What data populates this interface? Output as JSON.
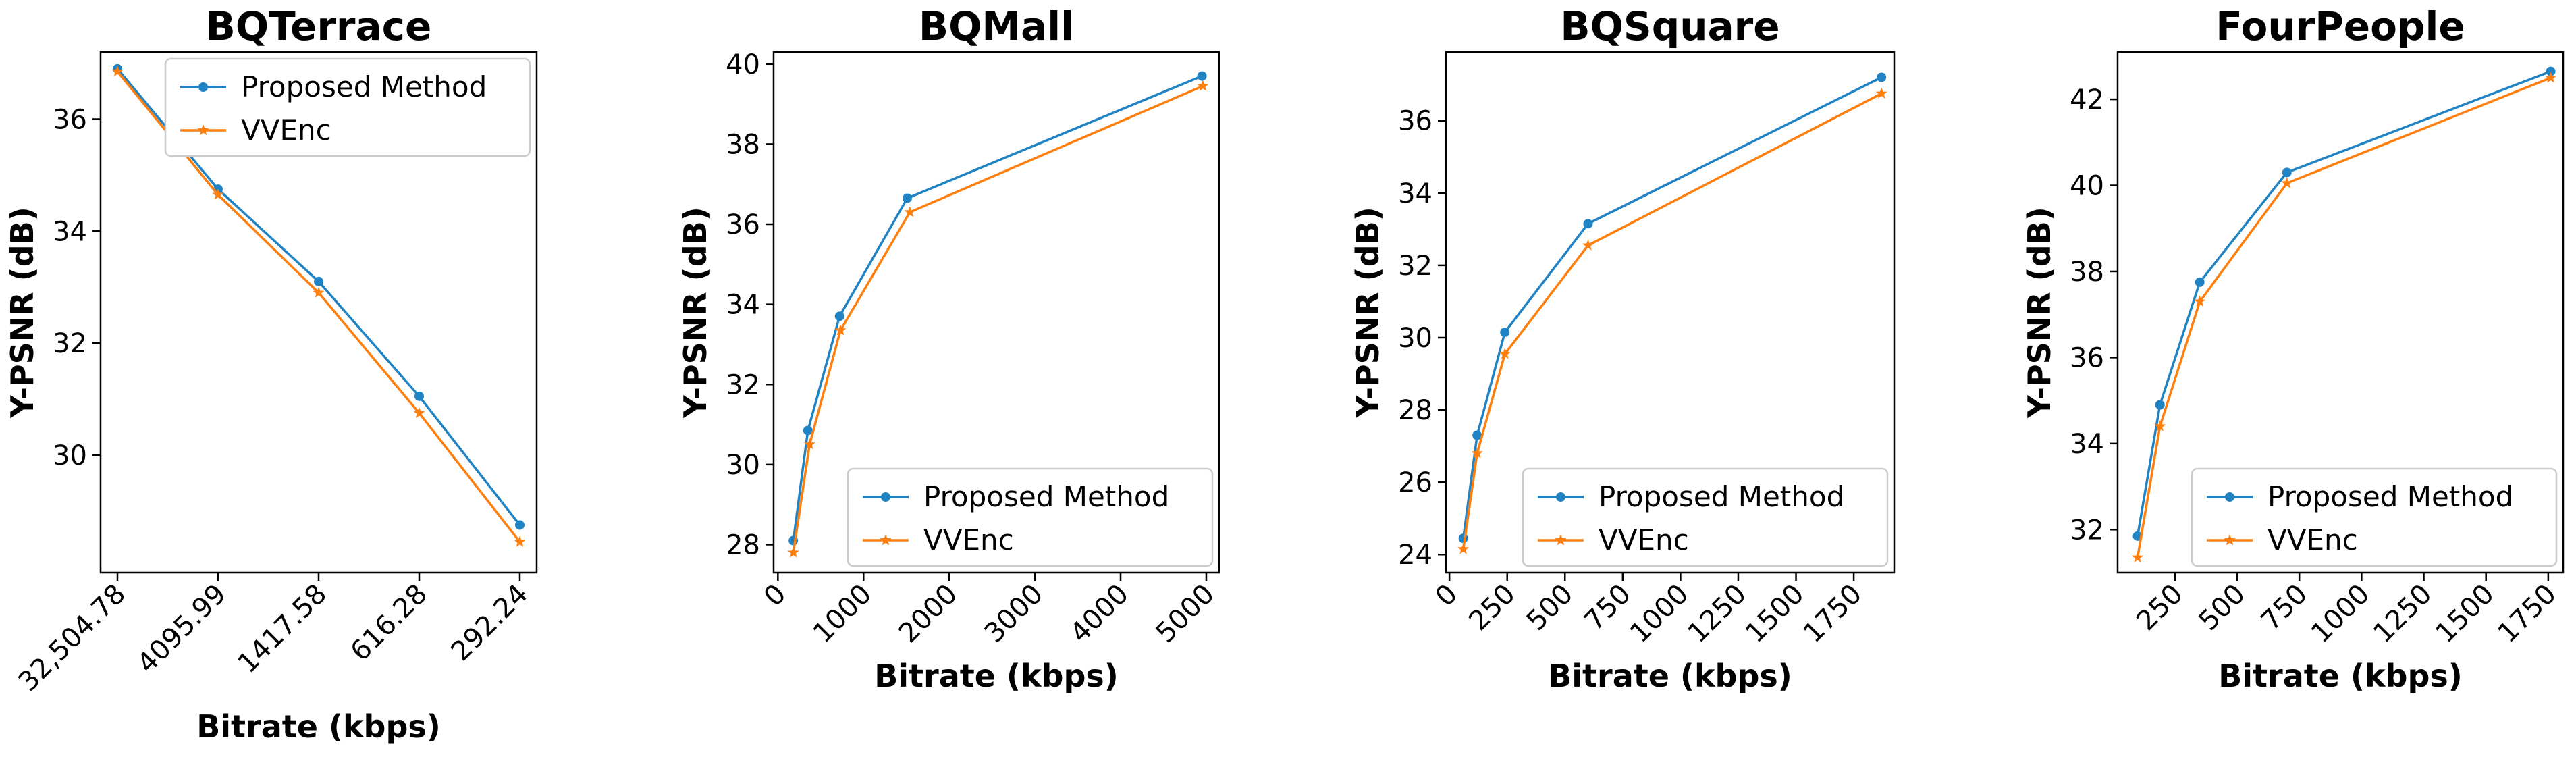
{
  "colors": {
    "proposed": "#1f83c4",
    "vvenc": "#ff7f0e"
  },
  "chart_data": [
    {
      "type": "line",
      "title": "BQTerrace",
      "xlabel": "Bitrate (kbps)",
      "ylabel": "Y-PSNR (dB)",
      "x_scale": "categorical",
      "categories": [
        "32,504.78",
        "4095.99",
        "1417.58",
        "616.28",
        "292.24"
      ],
      "ylim": [
        27.9,
        37.2
      ],
      "yticks": [
        "30",
        "32",
        "34",
        "36"
      ],
      "xticks": [],
      "legend": "top-right",
      "series": [
        {
          "name": "Proposed Method",
          "marker": "circle",
          "values": [
            36.9,
            34.75,
            33.1,
            31.05,
            28.75
          ]
        },
        {
          "name": "VVEnc",
          "marker": "star",
          "values": [
            36.85,
            34.65,
            32.9,
            30.75,
            28.45
          ]
        }
      ]
    },
    {
      "type": "line",
      "title": "BQMall",
      "xlabel": "Bitrate (kbps)",
      "ylabel": "Y-PSNR (dB)",
      "x_scale": "linear",
      "xlim": [
        -50,
        5150
      ],
      "xticks": [
        "0",
        "1000",
        "2000",
        "3000",
        "4000",
        "5000"
      ],
      "ylim": [
        27.3,
        40.3
      ],
      "yticks": [
        "28",
        "30",
        "32",
        "34",
        "36",
        "38",
        "40"
      ],
      "legend": "bottom-right",
      "series": [
        {
          "name": "Proposed Method",
          "marker": "circle",
          "x": [
            180,
            350,
            720,
            1510,
            4950
          ],
          "values": [
            28.1,
            30.85,
            33.7,
            36.65,
            39.7
          ]
        },
        {
          "name": "VVEnc",
          "marker": "star",
          "x": [
            180,
            370,
            730,
            1540,
            4960
          ],
          "values": [
            27.8,
            30.5,
            33.35,
            36.3,
            39.45
          ]
        }
      ]
    },
    {
      "type": "line",
      "title": "BQSquare",
      "xlabel": "Bitrate (kbps)",
      "ylabel": "Y-PSNR (dB)",
      "x_scale": "linear",
      "xlim": [
        -15,
        1925
      ],
      "xticks": [
        "0",
        "250",
        "500",
        "750",
        "1000",
        "1250",
        "1500",
        "1750"
      ],
      "ylim": [
        23.5,
        37.9
      ],
      "yticks": [
        "24",
        "26",
        "28",
        "30",
        "32",
        "34",
        "36"
      ],
      "legend": "bottom-right",
      "series": [
        {
          "name": "Proposed Method",
          "marker": "circle",
          "x": [
            60,
            120,
            240,
            600,
            1870
          ],
          "values": [
            24.45,
            27.3,
            30.15,
            33.15,
            37.2
          ]
        },
        {
          "name": "VVEnc",
          "marker": "star",
          "x": [
            60,
            120,
            240,
            600,
            1870
          ],
          "values": [
            24.15,
            26.8,
            29.55,
            32.55,
            36.75
          ]
        }
      ]
    },
    {
      "type": "line",
      "title": "FourPeople",
      "xlabel": "Bitrate (kbps)",
      "ylabel": "Y-PSNR (dB)",
      "x_scale": "linear",
      "xlim": [
        20,
        1810
      ],
      "xticks": [
        "250",
        "500",
        "750",
        "1000",
        "1250",
        "1500",
        "1750"
      ],
      "ylim": [
        31.0,
        43.1
      ],
      "yticks": [
        "32",
        "34",
        "36",
        "38",
        "40",
        "42"
      ],
      "legend": "bottom-right",
      "series": [
        {
          "name": "Proposed Method",
          "marker": "circle",
          "x": [
            100,
            190,
            350,
            700,
            1760
          ],
          "values": [
            31.85,
            34.9,
            37.75,
            40.3,
            42.65
          ]
        },
        {
          "name": "VVEnc",
          "marker": "star",
          "x": [
            100,
            190,
            350,
            700,
            1760
          ],
          "values": [
            31.35,
            34.4,
            37.3,
            40.05,
            42.5
          ]
        }
      ]
    }
  ]
}
